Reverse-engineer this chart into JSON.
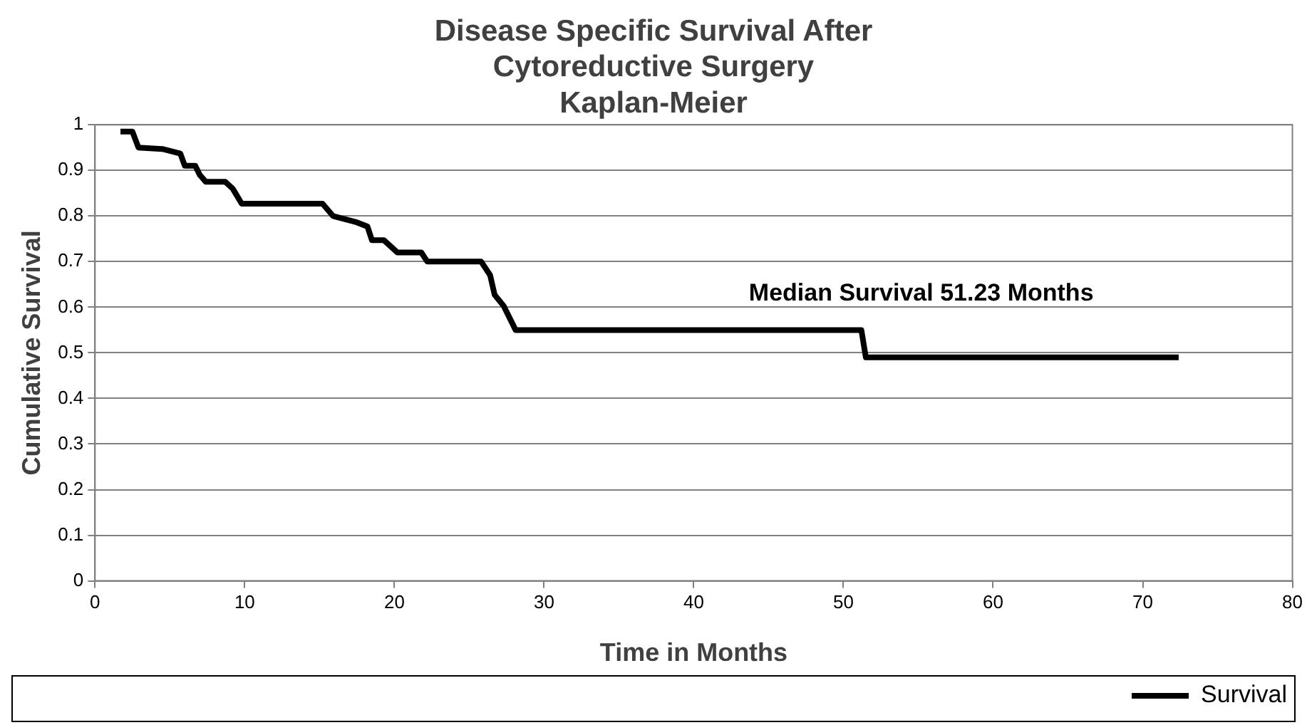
{
  "chart_data": {
    "type": "line",
    "title": "Disease Specific Survival After Cytoreductive Surgery",
    "subtitle": "Kaplan-Meier",
    "xlabel": "Time in Months",
    "ylabel": "Cumulative Survival",
    "annotations": [
      "Median Survival 51.23 Months"
    ],
    "x": [
      1.7,
      2.5,
      2.9,
      4.5,
      5.7,
      6.0,
      6.7,
      7.0,
      7.4,
      8.7,
      9.2,
      9.8,
      15.2,
      15.9,
      17.4,
      18.2,
      18.5,
      19.3,
      20.2,
      21.8,
      22.2,
      25.8,
      26.4,
      26.7,
      27.3,
      28.1,
      51.2,
      51.5,
      72.4
    ],
    "series": [
      {
        "name": "Survival",
        "color": "#000000",
        "values": [
          0.985,
          0.985,
          0.95,
          0.947,
          0.937,
          0.91,
          0.91,
          0.89,
          0.875,
          0.875,
          0.86,
          0.827,
          0.827,
          0.8,
          0.787,
          0.777,
          0.747,
          0.747,
          0.72,
          0.72,
          0.7,
          0.7,
          0.67,
          0.627,
          0.603,
          0.55,
          0.55,
          0.49,
          0.49
        ]
      }
    ],
    "xlim": [
      0,
      80
    ],
    "xticks": [
      0,
      10,
      20,
      30,
      40,
      50,
      60,
      70,
      80
    ],
    "ylim": [
      0,
      1
    ],
    "yticks": [
      0,
      0.1,
      0.2,
      0.3,
      0.4,
      0.5,
      0.6,
      0.7,
      0.8,
      0.9,
      1
    ],
    "grid": "y",
    "legend": "bottom right",
    "marker": "none",
    "line_style": "solid"
  }
}
